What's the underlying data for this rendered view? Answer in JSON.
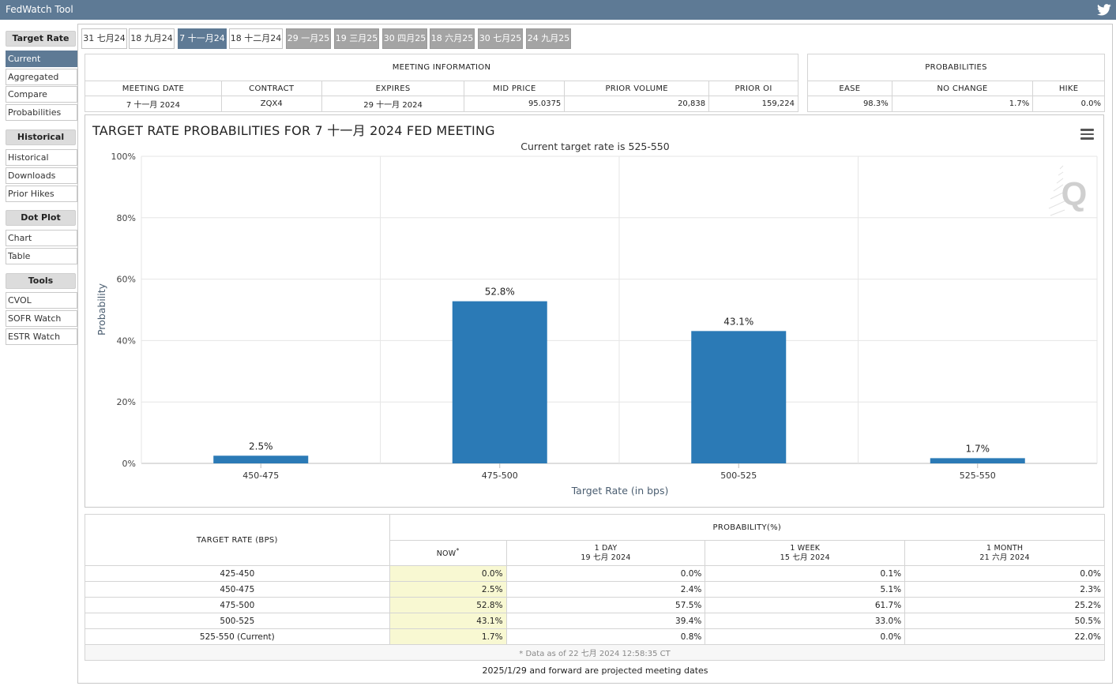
{
  "app": {
    "title": "FedWatch Tool"
  },
  "sidebar": {
    "groups": [
      {
        "title": "Target Rate",
        "items": [
          "Current",
          "Aggregated",
          "Compare",
          "Probabilities"
        ]
      },
      {
        "title": "Historical",
        "items": [
          "Historical",
          "Downloads",
          "Prior Hikes"
        ]
      },
      {
        "title": "Dot Plot",
        "items": [
          "Chart",
          "Table"
        ]
      },
      {
        "title": "Tools",
        "items": [
          "CVOL",
          "SOFR Watch",
          "ESTR Watch"
        ]
      }
    ],
    "active_item": "Current"
  },
  "tabs": [
    {
      "label": "31 七月24",
      "state": "normal"
    },
    {
      "label": "18 九月24",
      "state": "normal"
    },
    {
      "label": "7 十一月24",
      "state": "active"
    },
    {
      "label": "18 十二月24",
      "state": "normal"
    },
    {
      "label": "29 一月25",
      "state": "future"
    },
    {
      "label": "19 三月25",
      "state": "future"
    },
    {
      "label": "30 四月25",
      "state": "future"
    },
    {
      "label": "18 六月25",
      "state": "future"
    },
    {
      "label": "30 七月25",
      "state": "future"
    },
    {
      "label": "24 九月25",
      "state": "future"
    }
  ],
  "meeting_info": {
    "title": "MEETING INFORMATION",
    "headers": [
      "MEETING DATE",
      "CONTRACT",
      "EXPIRES",
      "MID PRICE",
      "PRIOR VOLUME",
      "PRIOR OI"
    ],
    "values": [
      "7 十一月 2024",
      "ZQX4",
      "29 十一月 2024",
      "95.0375",
      "20,838",
      "159,224"
    ]
  },
  "probabilities": {
    "title": "PROBABILITIES",
    "headers": [
      "EASE",
      "NO CHANGE",
      "HIKE"
    ],
    "values": [
      "98.3%",
      "1.7%",
      "0.0%"
    ]
  },
  "chart": {
    "title": "TARGET RATE PROBABILITIES FOR 7 十一月 2024 FED MEETING",
    "subtitle": "Current target rate is 525-550",
    "watermark": "Q"
  },
  "chart_data": {
    "type": "bar",
    "title": "TARGET RATE PROBABILITIES FOR 7 十一月 2024 FED MEETING",
    "subtitle": "Current target rate is 525-550",
    "categories": [
      "450-475",
      "475-500",
      "500-525",
      "525-550"
    ],
    "values": [
      2.5,
      52.8,
      43.1,
      1.7
    ],
    "data_labels": [
      "2.5%",
      "52.8%",
      "43.1%",
      "1.7%"
    ],
    "xlabel": "Target Rate (in bps)",
    "ylabel": "Probability",
    "ylim": [
      0,
      100
    ],
    "yticks": [
      "0%",
      "20%",
      "40%",
      "60%",
      "80%",
      "100%"
    ],
    "grid": true,
    "bar_color": "#2b7ab6"
  },
  "prob_table": {
    "rate_header": "TARGET RATE (BPS)",
    "group_header": "PROBABILITY(%)",
    "columns": [
      {
        "line1": "NOW",
        "line2": "",
        "marker": "*"
      },
      {
        "line1": "1 DAY",
        "line2": "19 七月 2024"
      },
      {
        "line1": "1 WEEK",
        "line2": "15 七月 2024"
      },
      {
        "line1": "1 MONTH",
        "line2": "21 六月 2024"
      }
    ],
    "rows": [
      {
        "rate": "425-450",
        "values": [
          "0.0%",
          "0.0%",
          "0.1%",
          "0.0%"
        ]
      },
      {
        "rate": "450-475",
        "values": [
          "2.5%",
          "2.4%",
          "5.1%",
          "2.3%"
        ]
      },
      {
        "rate": "475-500",
        "values": [
          "52.8%",
          "57.5%",
          "61.7%",
          "25.2%"
        ]
      },
      {
        "rate": "500-525",
        "values": [
          "43.1%",
          "39.4%",
          "33.0%",
          "50.5%"
        ]
      },
      {
        "rate": "525-550 (Current)",
        "values": [
          "1.7%",
          "0.8%",
          "0.0%",
          "22.0%"
        ]
      }
    ],
    "footnote": "* Data as of 22 七月 2024 12:58:35 CT"
  },
  "bottom_note": "2025/1/29 and forward are projected meeting dates"
}
